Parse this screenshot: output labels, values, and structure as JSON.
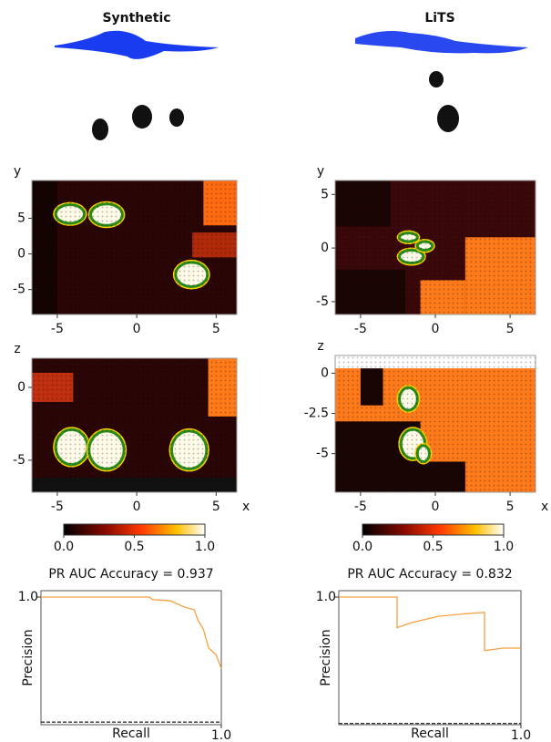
{
  "headers": [
    "Synthetic",
    "LiTS"
  ],
  "chart_data": [
    {
      "type": "heatmap",
      "ylabel": "y",
      "xlim": [
        -6.6,
        6.3
      ],
      "ylim": [
        -8.5,
        10.3
      ],
      "xticks": [
        -5,
        0,
        5
      ],
      "yticks": [
        5,
        0,
        -5
      ]
    },
    {
      "type": "heatmap",
      "ylabel": "z",
      "xlabel": "x",
      "xlim": [
        -6.6,
        6.3
      ],
      "ylim": [
        -7.2,
        2
      ],
      "xticks": [
        -5,
        0,
        5
      ],
      "yticks": [
        0,
        -5
      ]
    },
    {
      "type": "heatmap",
      "ylabel": "y",
      "xlim": [
        -6.7,
        6.7
      ],
      "ylim": [
        -6.2,
        6.3
      ],
      "xticks": [
        -5,
        0,
        5
      ],
      "yticks": [
        5,
        0,
        -5
      ]
    },
    {
      "type": "heatmap",
      "ylabel": "z",
      "xlabel": "x",
      "xlim": [
        -6.7,
        6.7
      ],
      "ylim": [
        -7.4,
        1.1
      ],
      "xticks": [
        -5,
        0,
        5
      ],
      "yticks": [
        0,
        -2.5,
        -5
      ]
    },
    {
      "type": "colorbar",
      "xlim": [
        0,
        1
      ],
      "xticks": [
        {
          "value": 0,
          "label": "0.0"
        },
        {
          "value": 0.5,
          "label": "0.5"
        },
        {
          "value": 1,
          "label": "1.0"
        }
      ]
    },
    {
      "type": "colorbar",
      "xlim": [
        0,
        1
      ],
      "xticks": [
        {
          "value": 0,
          "label": "0.0"
        },
        {
          "value": 0.5,
          "label": "0.5"
        },
        {
          "value": 1,
          "label": "1.0"
        }
      ]
    },
    {
      "type": "line",
      "title": "PR AUC Accuracy = 0.937",
      "xlabel": "Recall",
      "ylabel": "Precision",
      "xlim": [
        0,
        1
      ],
      "ylim": [
        0,
        1.05
      ],
      "xticks": [
        {
          "value": 1,
          "label": "1.0"
        }
      ],
      "yticks": [
        {
          "value": 1,
          "label": "1.0"
        }
      ],
      "x": [
        0,
        0.6,
        0.62,
        0.72,
        0.75,
        0.8,
        0.85,
        0.87,
        0.9,
        0.93,
        0.97,
        1
      ],
      "series": [
        {
          "color": "#f5a142",
          "values": [
            1,
            1,
            0.98,
            0.97,
            0.95,
            0.92,
            0.9,
            0.82,
            0.75,
            0.6,
            0.55,
            0.44
          ]
        },
        {
          "color": "#333333",
          "values": [
            0.02,
            0.02,
            0.02,
            0.02,
            0.02,
            0.02,
            0.02,
            0.02,
            0.02,
            0.02,
            0.02,
            0.02
          ]
        }
      ]
    },
    {
      "type": "line",
      "title": "PR AUC Accuracy = 0.832",
      "xlabel": "Recall",
      "ylabel": "Precision",
      "xlim": [
        0,
        1
      ],
      "ylim": [
        0,
        1.05
      ],
      "xticks": [
        {
          "value": 1,
          "label": "1.0"
        }
      ],
      "yticks": [
        {
          "value": 1,
          "label": "1.0"
        }
      ],
      "x": [
        0,
        0.32,
        0.32,
        0.4,
        0.55,
        0.7,
        0.8,
        0.8,
        0.9,
        1
      ],
      "series": [
        {
          "color": "#f5a142",
          "values": [
            1,
            1,
            0.76,
            0.8,
            0.85,
            0.87,
            0.88,
            0.58,
            0.6,
            0.6
          ]
        },
        {
          "color": "#333333",
          "values": [
            0.01,
            0.01,
            0.01,
            0.01,
            0.01,
            0.01,
            0.01,
            0.01,
            0.01,
            0.01
          ]
        }
      ]
    }
  ]
}
